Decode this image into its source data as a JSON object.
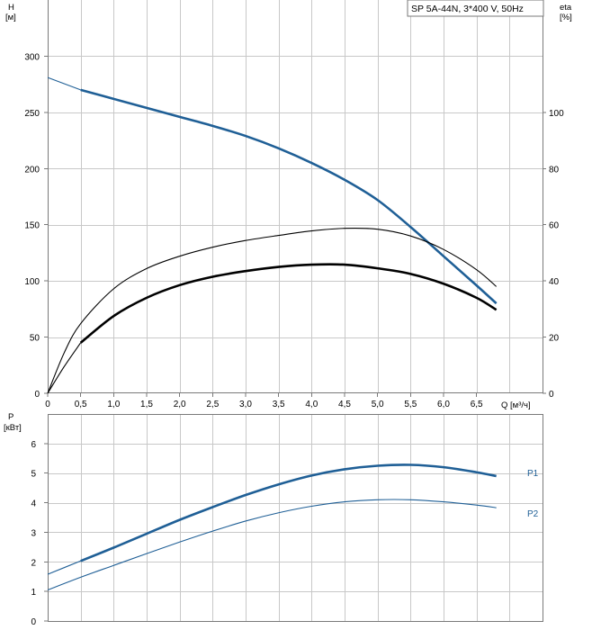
{
  "chart_data": [
    {
      "type": "line",
      "title": "SP 5A-44N, 3*400 V, 50Hz",
      "xlabel": "Q [м³/ч]",
      "ylabel_left_name": "H",
      "ylabel_left_unit": "[м]",
      "ylabel_right_name": "eta",
      "ylabel_right_unit": "[%]",
      "xlim": [
        0,
        7.5
      ],
      "ylim_left": [
        0,
        350
      ],
      "ylim_right": [
        0,
        140
      ],
      "x_ticks": [
        "0",
        "0,5",
        "1,0",
        "1,5",
        "2,0",
        "2,5",
        "3,0",
        "3,5",
        "4,0",
        "4,5",
        "5,0",
        "5,5",
        "6,0",
        "6,5"
      ],
      "y_ticks_left": [
        "0",
        "50",
        "100",
        "150",
        "200",
        "250",
        "300"
      ],
      "y_ticks_right": [
        "0",
        "20",
        "40",
        "60",
        "80",
        "100"
      ],
      "grid": true,
      "series": [
        {
          "name": "",
          "axis": "left",
          "color": "#1f5f96",
          "style": "thick",
          "x": [
            0.5,
            1.0,
            1.5,
            2.0,
            2.5,
            3.0,
            3.5,
            4.0,
            4.5,
            5.0,
            5.5,
            6.0,
            6.5,
            6.8
          ],
          "y": [
            270,
            262,
            254,
            246,
            238,
            229,
            218,
            205,
            190,
            172,
            148,
            122,
            96,
            80
          ]
        },
        {
          "name": "",
          "axis": "left",
          "color": "#1f5f96",
          "style": "thin",
          "x": [
            0.0,
            0.5
          ],
          "y": [
            281,
            270
          ]
        },
        {
          "name": "",
          "axis": "right",
          "color": "#000000",
          "style": "thick",
          "x": [
            0.5,
            1.0,
            1.5,
            2.0,
            2.5,
            3.0,
            3.5,
            4.0,
            4.5,
            5.0,
            5.5,
            6.0,
            6.5,
            6.8
          ],
          "y": [
            18,
            27.5,
            34,
            38.5,
            41.5,
            43.5,
            45,
            45.8,
            45.8,
            44.5,
            42.5,
            39,
            34,
            29.7
          ]
        },
        {
          "name": "",
          "axis": "right",
          "color": "#000000",
          "style": "thin",
          "x": [
            0.0,
            0.25,
            0.5
          ],
          "y": [
            0,
            9.5,
            18
          ]
        },
        {
          "name": "",
          "axis": "left",
          "color": "#000000",
          "style": "thin",
          "x": [
            0.0,
            0.25,
            0.5,
            1.0,
            1.5,
            2.0,
            2.5,
            3.0,
            3.5,
            4.0,
            4.5,
            5.0,
            5.5,
            6.0,
            6.5,
            6.8
          ],
          "y": [
            0,
            36,
            62,
            93,
            111,
            122,
            130,
            136,
            140.5,
            144.5,
            146.8,
            146,
            140,
            128,
            110,
            95
          ]
        }
      ]
    },
    {
      "type": "line",
      "ylabel_name": "P",
      "ylabel_unit": "[кВт]",
      "xlim": [
        0,
        7.5
      ],
      "ylim": [
        0,
        7
      ],
      "y_ticks": [
        "0",
        "1",
        "2",
        "3",
        "4",
        "5",
        "6"
      ],
      "grid": true,
      "series": [
        {
          "name": "P1",
          "color": "#1f5f96",
          "style": "thick",
          "x": [
            0.5,
            1.0,
            1.5,
            2.0,
            2.5,
            3.0,
            3.5,
            4.0,
            4.5,
            5.0,
            5.5,
            6.0,
            6.5,
            6.8
          ],
          "y": [
            2.03,
            2.48,
            2.95,
            3.42,
            3.85,
            4.26,
            4.62,
            4.92,
            5.13,
            5.25,
            5.28,
            5.2,
            5.03,
            4.9
          ]
        },
        {
          "name": "",
          "color": "#1f5f96",
          "style": "thin",
          "x": [
            0.0,
            0.5
          ],
          "y": [
            1.58,
            2.03
          ]
        },
        {
          "name": "P2",
          "color": "#1f5f96",
          "style": "thin",
          "x": [
            0.0,
            0.5,
            1.0,
            1.5,
            2.0,
            2.5,
            3.0,
            3.5,
            4.0,
            4.5,
            5.0,
            5.5,
            6.0,
            6.5,
            6.8
          ],
          "y": [
            1.05,
            1.48,
            1.88,
            2.28,
            2.67,
            3.04,
            3.38,
            3.66,
            3.88,
            4.03,
            4.1,
            4.1,
            4.03,
            3.92,
            3.83
          ]
        }
      ]
    }
  ]
}
